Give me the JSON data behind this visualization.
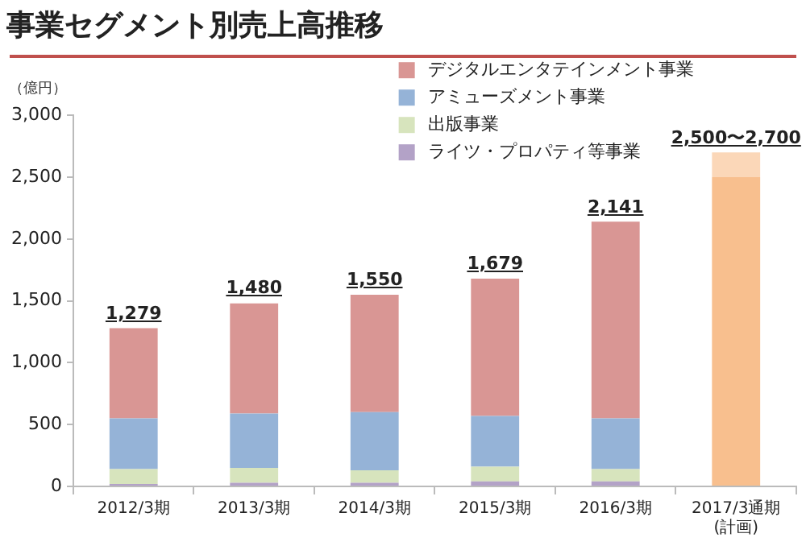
{
  "chart_data": {
    "type": "bar",
    "title": "事業セグメント別売上高推移",
    "ylabel": "（億円）",
    "stacked": true,
    "categories": [
      "2012/3期",
      "2013/3期",
      "2014/3期",
      "2015/3期",
      "2016/3期",
      "2017/3通期\n(計画)"
    ],
    "series": [
      {
        "name": "ライツ・プロパティ等事業",
        "color": "#b3a2c7",
        "values": [
          20,
          30,
          30,
          40,
          40,
          null
        ]
      },
      {
        "name": "出版事業",
        "color": "#d7e4bd",
        "values": [
          120,
          120,
          100,
          120,
          100,
          null
        ]
      },
      {
        "name": "アミューズメント事業",
        "color": "#95b3d7",
        "values": [
          410,
          440,
          470,
          410,
          410,
          null
        ]
      },
      {
        "name": "デジタルエンタテインメント事業",
        "color": "#d99694",
        "values": [
          730,
          890,
          950,
          1110,
          1590,
          null
        ]
      },
      {
        "color": "#f8bf8e",
        "values": [
          null,
          null,
          null,
          null,
          null,
          2500
        ]
      },
      {
        "color": "#fbd7b8",
        "values": [
          null,
          null,
          null,
          null,
          null,
          200
        ]
      }
    ],
    "totals": [
      "1,279",
      "1,480",
      "1,550",
      "1,679",
      "2,141",
      "2,500〜2,700"
    ],
    "ylim": [
      0,
      3000
    ],
    "yticks": [
      {
        "value": 0,
        "label": "0"
      },
      {
        "value": 500,
        "label": "500"
      },
      {
        "value": 1000,
        "label": "1,000"
      },
      {
        "value": 1500,
        "label": "1,500"
      },
      {
        "value": 2000,
        "label": "2,000"
      },
      {
        "value": 2500,
        "label": "2,500"
      },
      {
        "value": 3000,
        "label": "3,000"
      }
    ],
    "grid": false,
    "legend": "top right"
  }
}
